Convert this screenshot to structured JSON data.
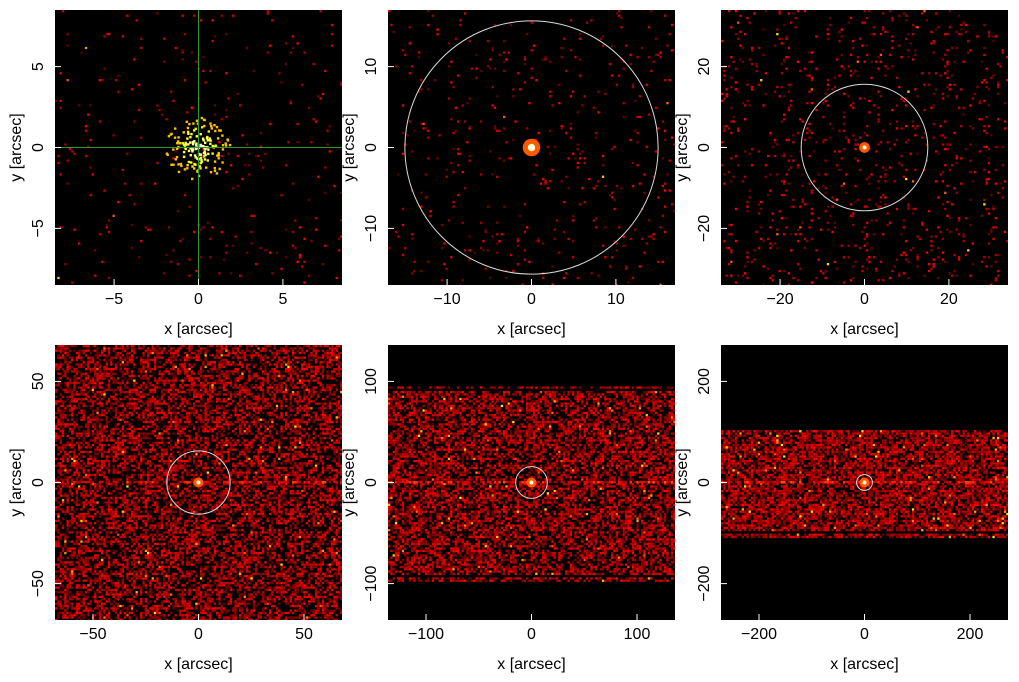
{
  "chart_data": [
    {
      "type": "heatmap",
      "xlabel": "x [arcsec]",
      "ylabel": "y [arcsec]",
      "xlim": [
        -8.5,
        8.5
      ],
      "ylim": [
        -8.5,
        8.5
      ],
      "xticks": [
        -5,
        0,
        5
      ],
      "yticks": [
        -5,
        0,
        5
      ],
      "source": {
        "x": 0,
        "y": 0,
        "radius": 1.2
      },
      "crosshair": {
        "x": 0,
        "y": 0
      },
      "background_level": 0.02,
      "band_halfheight": null
    },
    {
      "type": "heatmap",
      "xlabel": "x [arcsec]",
      "ylabel": "y [arcsec]",
      "xlim": [
        -17,
        17
      ],
      "ylim": [
        -17,
        17
      ],
      "xticks": [
        -10,
        0,
        10
      ],
      "yticks": [
        -10,
        0,
        10
      ],
      "source": {
        "x": 0,
        "y": 0,
        "radius": 0.8
      },
      "circle_radius": 15,
      "background_level": 0.03,
      "band_halfheight": null
    },
    {
      "type": "heatmap",
      "xlabel": "x [arcsec]",
      "ylabel": "y [arcsec]",
      "xlim": [
        -34,
        34
      ],
      "ylim": [
        -34,
        34
      ],
      "xticks": [
        -20,
        0,
        20
      ],
      "yticks": [
        -20,
        0,
        20
      ],
      "source": {
        "x": 0,
        "y": 0,
        "radius": 0.8
      },
      "circle_radius": 15,
      "background_level": 0.06,
      "band_halfheight": null
    },
    {
      "type": "heatmap",
      "xlabel": "x [arcsec]",
      "ylabel": "y [arcsec]",
      "xlim": [
        -68,
        68
      ],
      "ylim": [
        -68,
        68
      ],
      "xticks": [
        -50,
        0,
        50
      ],
      "yticks": [
        -50,
        0,
        50
      ],
      "source": {
        "x": 0,
        "y": 0,
        "radius": 1.2
      },
      "circle_radius": 15,
      "background_level": 0.55,
      "band_halfheight": null
    },
    {
      "type": "heatmap",
      "xlabel": "x [arcsec]",
      "ylabel": "y [arcsec]",
      "xlim": [
        -136,
        136
      ],
      "ylim": [
        -136,
        136
      ],
      "xticks": [
        -100,
        0,
        100
      ],
      "yticks": [
        -100,
        0,
        100
      ],
      "source": {
        "x": 0,
        "y": 0,
        "radius": 2.5
      },
      "circle_radius": 15,
      "background_level": 0.6,
      "band_halfheight": 92
    },
    {
      "type": "heatmap",
      "xlabel": "x [arcsec]",
      "ylabel": "y [arcsec]",
      "xlim": [
        -272,
        272
      ],
      "ylim": [
        -272,
        272
      ],
      "xticks": [
        -200,
        0,
        200
      ],
      "yticks": [
        -200,
        0,
        200
      ],
      "source": {
        "x": 0,
        "y": 0,
        "radius": 5
      },
      "circle_radius": 15,
      "background_level": 0.7,
      "band_halfheight": 92
    }
  ]
}
